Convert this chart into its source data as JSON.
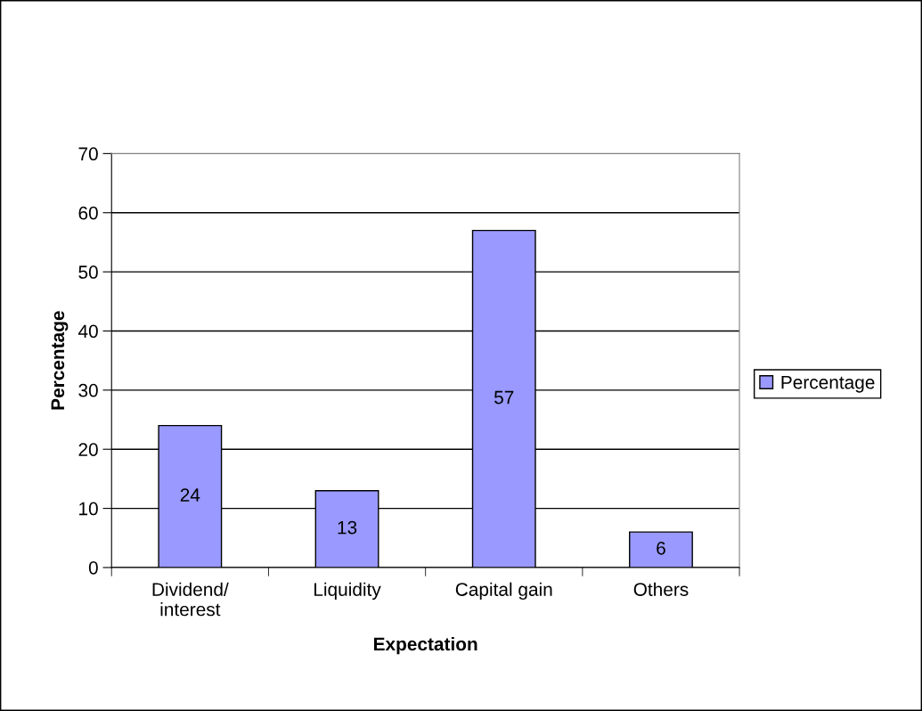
{
  "chart_data": {
    "type": "bar",
    "xlabel": "Expectation",
    "ylabel": "Percentage",
    "categories": [
      "Dividend/\ninterest",
      "Liquidity",
      "Capital gain",
      "Others"
    ],
    "series": [
      {
        "name": "Percentage",
        "color": "#9999ff",
        "values": [
          24,
          13,
          57,
          6
        ]
      }
    ],
    "ylim": [
      0,
      70
    ],
    "yticks": [
      0,
      10,
      20,
      30,
      40,
      50,
      60,
      70
    ],
    "grid": "y",
    "legend": "right",
    "data_labels": true
  }
}
